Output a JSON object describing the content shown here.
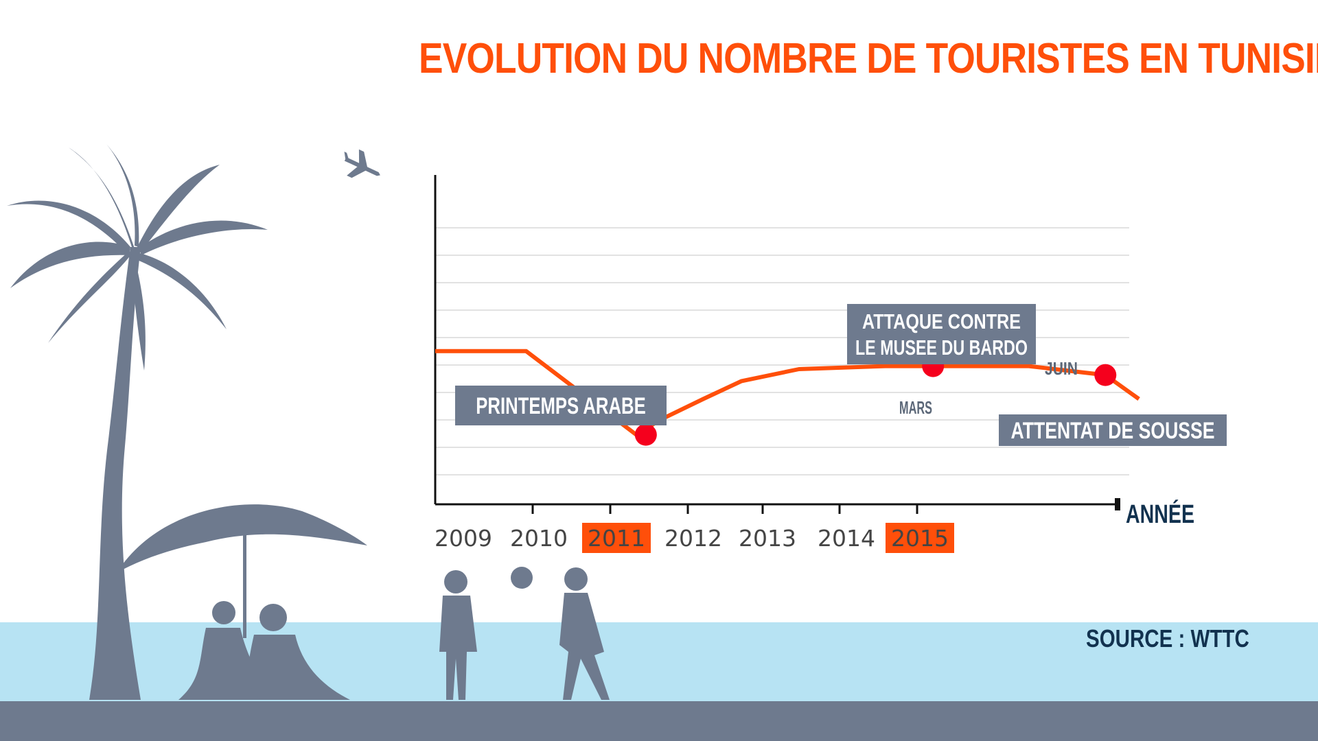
{
  "colors": {
    "accent": "#ff4f0a",
    "line": "#ff4f0a",
    "marker": "#f5001d",
    "silhouette": "#6e7a8e",
    "sea": "#b7e3f3",
    "ground": "#6e7a8e",
    "label_box": "#6e7a8e",
    "dark_text": "#12324f",
    "grid": "#e2e2e2"
  },
  "chart_data": {
    "type": "line",
    "title": "EVOLUTION DU NOMBRE DE TOURISTES EN TUNISIE",
    "xlabel": "ANNÉE",
    "ylabel": "",
    "x_ticks": [
      "2009",
      "2010",
      "2011",
      "2012",
      "2013",
      "2014",
      "2015"
    ],
    "highlighted_ticks": [
      "2011",
      "2015"
    ],
    "xlim": [
      2008.8,
      2016.3
    ],
    "ylim": [
      0,
      10
    ],
    "grid": true,
    "y_tick_labels_shown": false,
    "series": [
      {
        "x": [
          2008.8,
          2009.75,
          2010.9,
          2011.15,
          2011.6,
          2012.0,
          2012.6,
          2013.5,
          2015.0,
          2015.8,
          2016.15
        ],
        "values": [
          4.9,
          4.9,
          2.1,
          2.6,
          3.3,
          3.9,
          4.3,
          4.4,
          4.4,
          4.1,
          3.3
        ]
      }
    ],
    "events": [
      {
        "label": "PRINTEMPS ARABE",
        "x": 2011.0,
        "y": 2.1
      },
      {
        "label": "ATTAQUE CONTRE\nLE MUSEE DU BARDO",
        "sublabel": "MARS",
        "x": 2014.0,
        "y": 4.4
      },
      {
        "label": "ATTENTAT DE SOUSSE",
        "sublabel": "JUIN",
        "x": 2015.8,
        "y": 4.1
      }
    ]
  },
  "source_text": "SOURCE : WTTC",
  "icons": [
    "palm-tree-icon",
    "airplane-icon",
    "parasol-icon",
    "people-silhouette-icon",
    "ball-icon"
  ]
}
